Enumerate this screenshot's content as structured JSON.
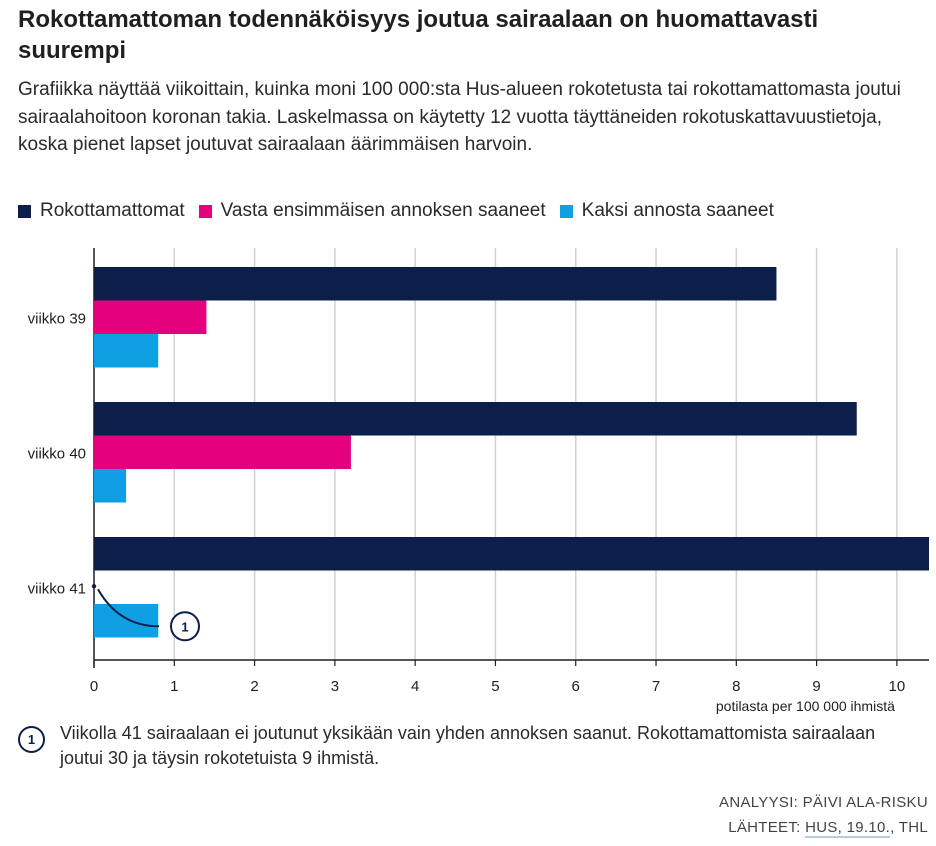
{
  "title": "Rokottamattoman todennäköisyys joutua sairaalaan on huomattavasti suurempi",
  "subtitle": "Grafiikka näyttää viikoittain, kuinka moni 100 000:sta Hus-alueen rokotetusta tai rokottamattomasta joutui sairaalahoitoon koronan takia. Laskelmassa on käytetty 12 vuotta täyttäneiden rokotuskattavuustietoja, koska pienet lapset joutuvat sairaalaan äärimmäisen harvoin.",
  "legend": [
    {
      "label": "Rokottamattomat",
      "color": "#0b1f4a"
    },
    {
      "label": "Vasta ensimmäisen annoksen saaneet",
      "color": "#e5007d"
    },
    {
      "label": "Kaksi annosta saaneet",
      "color": "#0ea0e3"
    }
  ],
  "chart_data": {
    "type": "bar",
    "orientation": "horizontal",
    "categories": [
      "viikko 39",
      "viikko 40",
      "viikko 41"
    ],
    "series": [
      {
        "name": "Rokottamattomat",
        "color": "#0b1f4a",
        "values": [
          8.5,
          9.5,
          10.4
        ]
      },
      {
        "name": "Vasta ensimmäisen annoksen saaneet",
        "color": "#e5007d",
        "values": [
          1.4,
          3.2,
          0
        ]
      },
      {
        "name": "Kaksi annosta saaneet",
        "color": "#0ea0e3",
        "values": [
          0.8,
          0.4,
          0.8
        ]
      }
    ],
    "xlim": [
      0,
      10.4
    ],
    "xticks": [
      "0",
      "1",
      "2",
      "3",
      "4",
      "5",
      "6",
      "7",
      "8",
      "9",
      "10"
    ],
    "xlabel": "potilasta per 100 000 ihmistä",
    "grid": true,
    "annotation_marker": "1"
  },
  "note": {
    "marker": "1",
    "text": "Viikolla 41 sairaalaan ei joutunut yksikään vain yhden annoksen saanut. Rokottamattomista sairaalaan joutui 30 ja täysin rokotetuista 9 ihmistä."
  },
  "credits": {
    "analysis": "ANALYYSI: PÄIVI ALA-RISKU",
    "sources_prefix": "LÄHTEET: ",
    "sources_link": "HUS, 19.10.",
    "sources_suffix": ", THL"
  }
}
